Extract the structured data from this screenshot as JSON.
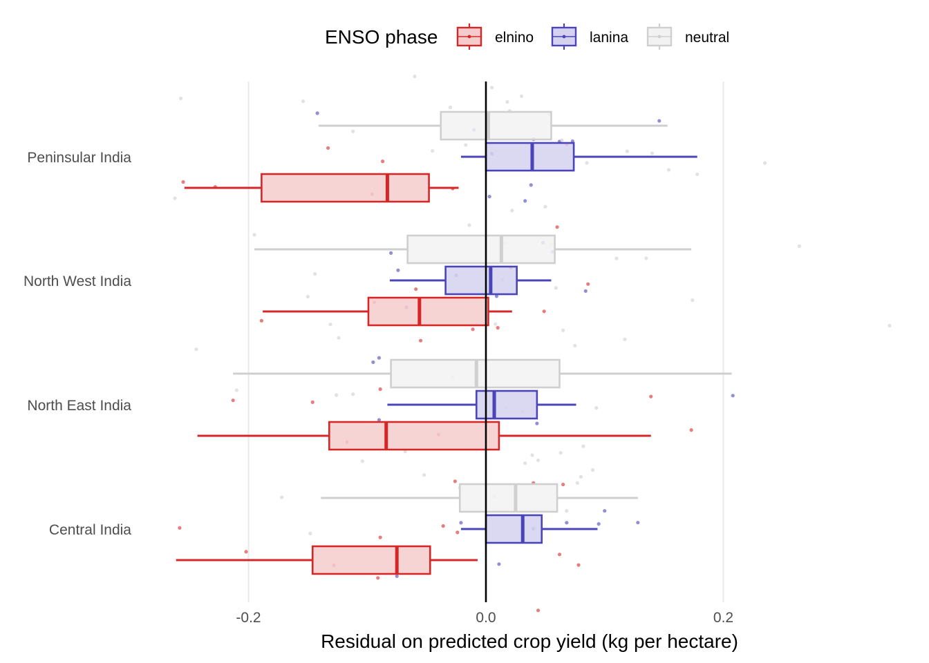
{
  "chart_data": {
    "type": "boxplot",
    "orientation": "horizontal",
    "title": "",
    "xlabel": "Residual on predicted crop yield (kg per hectare)",
    "ylabel": "",
    "xlim": [
      -0.3,
      0.35
    ],
    "x_ticks": [
      -0.2,
      0.0,
      0.2
    ],
    "x_tick_labels": [
      "-0.2",
      "0.0",
      "0.2"
    ],
    "reference_line_x": 0.0,
    "grid": "vertical major gridlines",
    "legend": {
      "title": "ENSO phase",
      "position": "top"
    },
    "categories": [
      "Peninsular India",
      "North West India",
      "North East India",
      "Central India"
    ],
    "series": [
      {
        "name": "elnino",
        "color": "#d62728",
        "fill": "#f4cccc",
        "boxes": [
          {
            "region": "Peninsular India",
            "whisker_low": -0.254,
            "q1": -0.189,
            "median": -0.083,
            "q3": -0.048,
            "whisker_high": -0.023
          },
          {
            "region": "North West India",
            "whisker_low": -0.188,
            "q1": -0.099,
            "median": -0.056,
            "q3": 0.002,
            "whisker_high": 0.022
          },
          {
            "region": "North East India",
            "whisker_low": -0.243,
            "q1": -0.132,
            "median": -0.084,
            "q3": 0.011,
            "whisker_high": 0.139
          },
          {
            "region": "Central India",
            "whisker_low": -0.261,
            "q1": -0.146,
            "median": -0.075,
            "q3": -0.047,
            "whisker_high": -0.007
          }
        ],
        "points": [
          {
            "region": "Peninsular India",
            "x": [
              -0.228,
              -0.096,
              -0.133,
              -0.087,
              -0.255,
              -0.028,
              0.068,
              0.06
            ]
          },
          {
            "region": "North West India",
            "x": [
              -0.189,
              -0.094,
              -0.059,
              -0.055,
              0.01,
              0.021,
              0.049,
              0.086,
              -0.011
            ]
          },
          {
            "region": "North East India",
            "x": [
              -0.213,
              -0.117,
              -0.04,
              -0.146,
              -0.089,
              -0.026,
              0.065,
              0.139,
              0.173,
              0.04
            ]
          },
          {
            "region": "Central India",
            "x": [
              -0.258,
              -0.202,
              -0.128,
              -0.091,
              -0.089,
              -0.036,
              0.044,
              0.062,
              -0.024,
              0.078
            ]
          }
        ]
      },
      {
        "name": "lanina",
        "color": "#4b44b8",
        "fill": "#d4d2ee",
        "boxes": [
          {
            "region": "Peninsular India",
            "whisker_low": -0.021,
            "q1": 0.0,
            "median": 0.039,
            "q3": 0.074,
            "whisker_high": 0.178
          },
          {
            "region": "North West India",
            "whisker_low": -0.081,
            "q1": -0.034,
            "median": 0.004,
            "q3": 0.026,
            "whisker_high": 0.055
          },
          {
            "region": "North East India",
            "whisker_low": -0.083,
            "q1": -0.008,
            "median": 0.007,
            "q3": 0.043,
            "whisker_high": 0.076
          },
          {
            "region": "Central India",
            "whisker_low": -0.021,
            "q1": 0.0,
            "median": 0.031,
            "q3": 0.047,
            "whisker_high": 0.094
          }
        ],
        "points": [
          {
            "region": "Peninsular India",
            "x": [
              0.04,
              0.146,
              0.038,
              0.062,
              0.073,
              -0.142,
              0.033,
              -0.01,
              0.003,
              0.005
            ]
          },
          {
            "region": "North West India",
            "x": [
              -0.08,
              0.084,
              -0.074,
              -0.067,
              0.009,
              0.048,
              0.056,
              -0.025
            ]
          },
          {
            "region": "North East India",
            "x": [
              -0.095,
              -0.09,
              0.208,
              0.043,
              -0.09
            ]
          },
          {
            "region": "Central India",
            "x": [
              -0.075,
              0.1,
              0.128,
              0.04,
              0.068,
              0.011,
              0.095,
              -0.021
            ]
          }
        ]
      },
      {
        "name": "neutral",
        "color": "#cfcfcf",
        "fill": "#f2f2f2",
        "boxes": [
          {
            "region": "Peninsular India",
            "whisker_low": -0.141,
            "q1": -0.038,
            "median": 0.002,
            "q3": 0.055,
            "whisker_high": 0.153
          },
          {
            "region": "North West India",
            "whisker_low": -0.195,
            "q1": -0.066,
            "median": 0.013,
            "q3": 0.058,
            "whisker_high": 0.173
          },
          {
            "region": "North East India",
            "whisker_low": -0.213,
            "q1": -0.08,
            "median": -0.008,
            "q3": 0.062,
            "whisker_high": 0.207
          },
          {
            "region": "Central India",
            "whisker_low": -0.139,
            "q1": -0.022,
            "median": 0.025,
            "q3": 0.06,
            "whisker_high": 0.128
          }
        ],
        "points": [
          {
            "region": "Peninsular India",
            "x": [
              -0.154,
              -0.257,
              -0.045,
              0.005,
              0.018,
              0.14,
              0.085,
              0.178,
              0.154,
              0.235,
              0.119,
              0.064,
              -0.112,
              -0.06,
              -0.03,
              0.02,
              0.03,
              0.054,
              -0.017
            ]
          },
          {
            "region": "North West India",
            "x": [
              -0.144,
              -0.014,
              -0.15,
              -0.262,
              -0.195,
              0.135,
              0.016,
              0.05,
              0.174,
              0.055,
              0.059,
              0.11,
              0.264,
              0.022,
              0.014,
              0.0
            ]
          },
          {
            "region": "North East India",
            "x": [
              -0.244,
              -0.131,
              -0.124,
              -0.126,
              -0.112,
              -0.21,
              0.031,
              0.075,
              0.093,
              0.117,
              0.34,
              0.065,
              0.008,
              -0.028,
              0.017
            ]
          },
          {
            "region": "Central India",
            "x": [
              -0.148,
              -0.104,
              -0.172,
              -0.068,
              -0.052,
              0.007,
              0.063,
              0.077,
              0.09,
              0.08,
              0.041,
              0.044,
              0.033,
              0.082,
              0.068,
              0.039,
              -0.022
            ]
          }
        ]
      }
    ]
  }
}
